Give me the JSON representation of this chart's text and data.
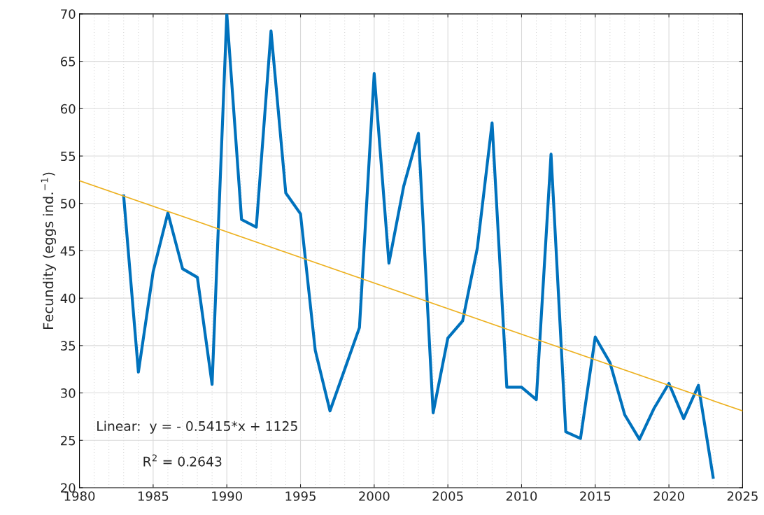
{
  "chart_data": {
    "type": "line",
    "ylabel": "Fecundity (eggs ind.$^{−1}$)",
    "xlim": [
      1980,
      2025
    ],
    "xticks": [
      1980,
      1985,
      1990,
      1995,
      2000,
      2005,
      2010,
      2015,
      2020,
      2025
    ],
    "ylim": [
      20,
      70
    ],
    "yticks": [
      20,
      25,
      30,
      35,
      40,
      45,
      50,
      55,
      60,
      65,
      70
    ],
    "grid": true,
    "legend": false,
    "x": [
      1983,
      1984,
      1985,
      1986,
      1987,
      1988,
      1989,
      1990,
      1991,
      1992,
      1993,
      1994,
      1995,
      1996,
      1997,
      1998,
      1999,
      2000,
      2001,
      2002,
      2003,
      2004,
      2005,
      2006,
      2007,
      2008,
      2009,
      2010,
      2011,
      2012,
      2013,
      2014,
      2015,
      2016,
      2017,
      2018,
      2019,
      2020,
      2021,
      2022,
      2023
    ],
    "series": [
      {
        "color": "#0072bd",
        "values": [
          50.8,
          32.2,
          42.8,
          49.0,
          43.1,
          42.2,
          30.9,
          70.0,
          48.3,
          47.5,
          68.2,
          51.1,
          48.9,
          34.5,
          28.1,
          32.5,
          36.9,
          63.7,
          43.7,
          51.8,
          57.4,
          27.9,
          35.8,
          37.6,
          45.3,
          58.5,
          30.6,
          30.6,
          29.3,
          55.2,
          25.9,
          25.2,
          35.9,
          33.2,
          27.7,
          25.1,
          28.4,
          31.0,
          27.3,
          30.8,
          21.1
        ]
      },
      {
        "type": "line",
        "color": "#edb120",
        "x": [
          1980,
          2025
        ],
        "values": [
          52.4,
          28.1
        ]
      }
    ],
    "annotations": [
      "Linear:  y = - 0.5415*x + 1125",
      "R$^{2}$ = 0.2643"
    ]
  }
}
